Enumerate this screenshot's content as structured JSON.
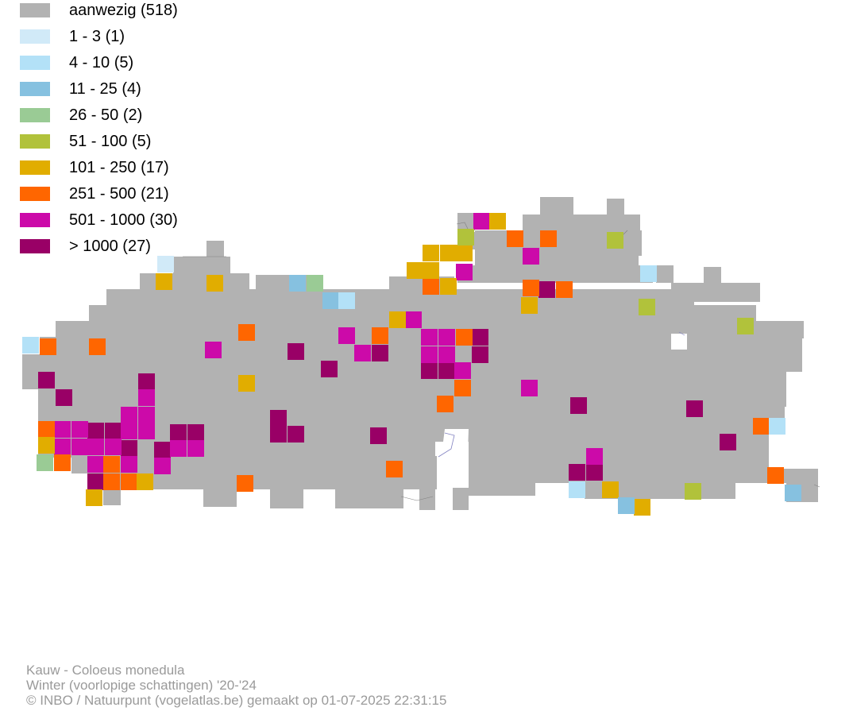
{
  "colors": {
    "present": "#b2b2b2",
    "c1": "#d1eaf8",
    "c2": "#b3e1f7",
    "c3": "#86c1e0",
    "c4": "#9acb95",
    "c5": "#b1c23b",
    "c6": "#e1ad00",
    "c7": "#ff6600",
    "c8": "#cc0aa9",
    "c9": "#990066"
  },
  "legend": [
    {
      "color": "#b2b2b2",
      "label": "aanwezig (518)"
    },
    {
      "color": "#d1eaf8",
      "label": "1 - 3 (1)"
    },
    {
      "color": "#b3e1f7",
      "label": "4 - 10 (5)"
    },
    {
      "color": "#86c1e0",
      "label": "11 - 25 (4)"
    },
    {
      "color": "#9acb95",
      "label": "26 - 50 (2)"
    },
    {
      "color": "#b1c23b",
      "label": "51 - 100 (5)"
    },
    {
      "color": "#e1ad00",
      "label": "101 - 250 (17)"
    },
    {
      "color": "#ff6600",
      "label": "251 - 500 (21)"
    },
    {
      "color": "#cc0aa9",
      "label": "501 - 1000 (30)"
    },
    {
      "color": "#990066",
      "label": "> 1000 (27)"
    }
  ],
  "credits": {
    "species": "Kauw - Coloeus monedula",
    "period": "Winter (voorlopige schattingen) '20-'24",
    "copyright": "© INBO / Natuurpunt (vogelatlas.be) gemaakt op 01-07-2025 22:31:15"
  }
}
